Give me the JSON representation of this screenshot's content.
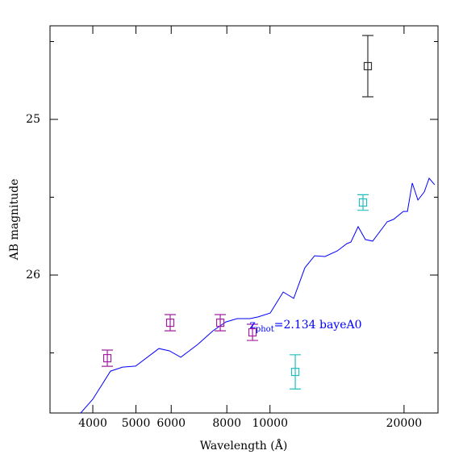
{
  "chart_data": {
    "type": "line",
    "x_label": "Wavelength (Å)",
    "y_label": "AB magnitude",
    "x_log": true,
    "xlim": [
      3206,
      23840
    ],
    "ylim": [
      26.886,
      24.399
    ],
    "xticks": [
      4000,
      5000,
      6000,
      8000,
      10000,
      20000
    ],
    "yticks": [
      25,
      26
    ],
    "y_minor_ticks": [
      24.5,
      25.5,
      26.5
    ],
    "model": {
      "color": "#0000ff",
      "x": [
        3757,
        4000,
        4384,
        4667,
        4990,
        5631,
        5946,
        6303,
        6879,
        7447,
        7961,
        8440,
        9021,
        9405,
        10013,
        10705,
        11302,
        11981,
        12596,
        13297,
        14157,
        14884,
        15196,
        15777,
        16381,
        17005,
        18330,
        18955,
        19928,
        20351,
        20867,
        21484,
        22211,
        22772,
        23439
      ],
      "values": [
        26.886,
        26.798,
        26.617,
        26.591,
        26.585,
        26.472,
        26.487,
        26.528,
        26.446,
        26.358,
        26.301,
        26.28,
        26.28,
        26.269,
        26.244,
        26.109,
        26.15,
        25.953,
        25.876,
        25.881,
        25.845,
        25.798,
        25.788,
        25.689,
        25.772,
        25.782,
        25.658,
        25.642,
        25.591,
        25.591,
        25.409,
        25.518,
        25.466,
        25.378,
        25.42
      ]
    },
    "points": [
      {
        "color": "#a020a0",
        "x": [
          4312,
          5969,
          7732,
          9135
        ],
        "values": [
          26.534,
          26.306,
          26.306,
          26.368
        ],
        "errors": [
          0.052,
          0.052,
          0.052,
          0.052
        ]
      },
      {
        "color": "#20c0c0",
        "x": [
          11396,
          16177
        ],
        "values": [
          26.622,
          25.534
        ],
        "errors": [
          0.11,
          0.05
        ]
      },
      {
        "color": "#333333",
        "x": [
          16584
        ],
        "values": [
          24.658
        ],
        "errors": [
          0.197
        ]
      }
    ],
    "annotation": {
      "z": "z",
      "sub": "phot",
      "rest": "=2.134 bayeA0",
      "x": 9000,
      "y": 26.32,
      "color": "#0000ff"
    }
  }
}
